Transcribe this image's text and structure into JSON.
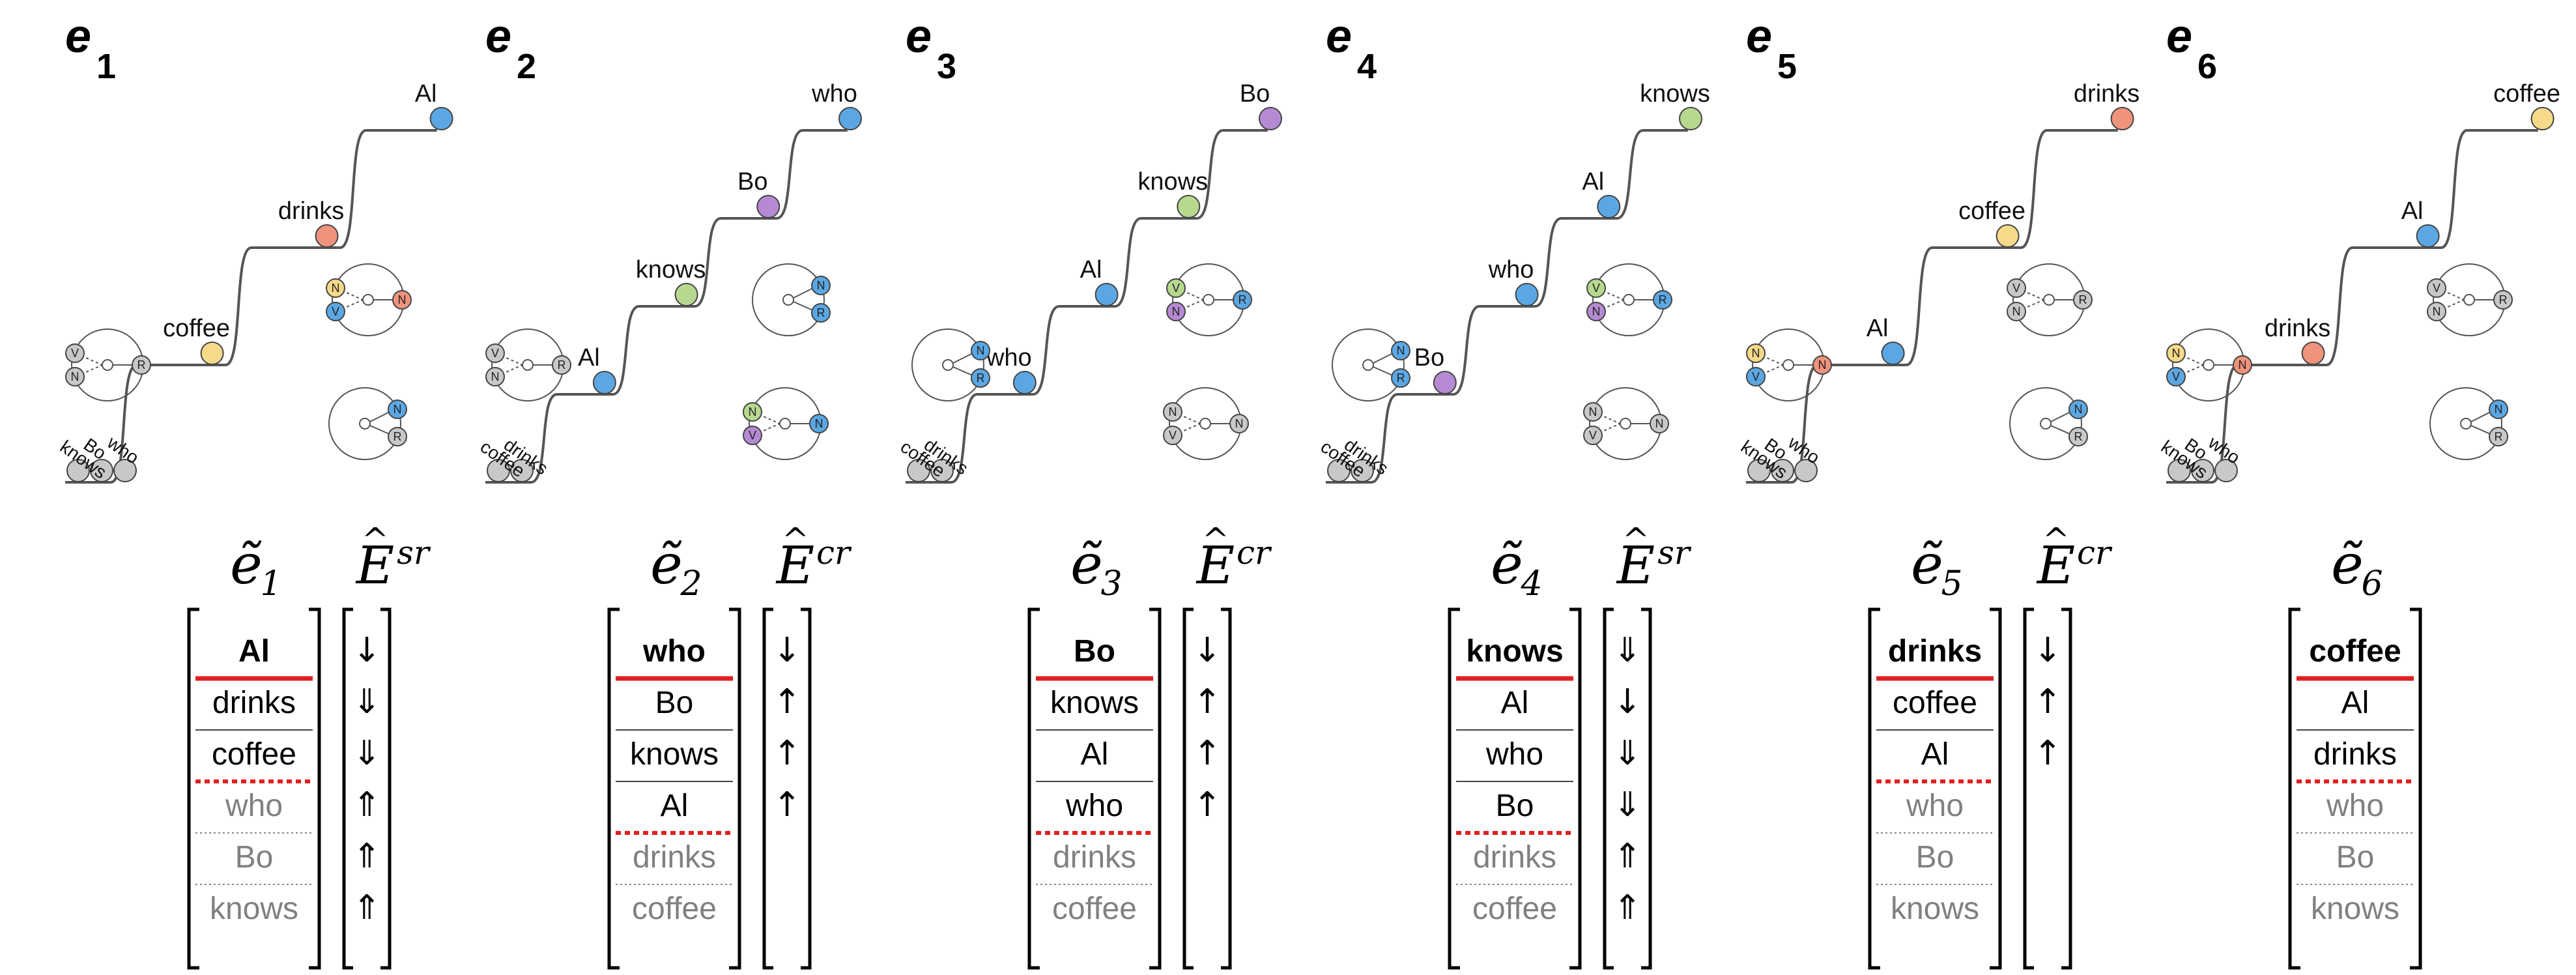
{
  "colors": {
    "Al": "#5ba7e3",
    "drinks": "#f0937c",
    "coffee": "#f7d98a",
    "who": "#5ba7e3",
    "Bo": "#b58ad3",
    "knows": "#b7d98f",
    "gray_ball": "#c8c8c8",
    "role_V": "#b7d98f",
    "role_N": "#5ba7e3",
    "role_R": "#5ba7e3",
    "role_V_alt": "#f0937c",
    "role_N_alt": "#f7d98a",
    "role_N_purple": "#b58ad3",
    "role_gray": "#c8c8c8",
    "red": "#e02020",
    "stack_gray": "#808080"
  },
  "panels": [
    {
      "title": "e",
      "subscript": "1",
      "stair_words": [
        "coffee",
        "drinks",
        "Al"
      ],
      "pile_words": [
        "knows",
        "Bo",
        "who"
      ],
      "stack_header": "ẽ₁",
      "op_header": "Ê^sr",
      "op_base": "E",
      "op_sup": "sr",
      "stack_sub": "1",
      "stack": [
        {
          "word": "Al",
          "style": "bold"
        },
        {
          "word": "drinks",
          "style": "normal"
        },
        {
          "word": "coffee",
          "style": "normal"
        },
        {
          "word": "who",
          "style": "gray"
        },
        {
          "word": "Bo",
          "style": "gray"
        },
        {
          "word": "knows",
          "style": "gray"
        }
      ],
      "red_dotted_after": 3,
      "arrows": [
        "↓",
        "⇓",
        "⇓",
        "⇑",
        "⇑",
        "⇑"
      ]
    },
    {
      "title": "e",
      "subscript": "2",
      "stair_words": [
        "Al",
        "knows",
        "Bo",
        "who"
      ],
      "pile_words": [
        "coffee",
        "drinks"
      ],
      "stack_header": "ẽ₂",
      "op_header": "Ê^cr",
      "op_base": "E",
      "op_sup": "cr",
      "stack_sub": "2",
      "stack": [
        {
          "word": "who",
          "style": "bold"
        },
        {
          "word": "Bo",
          "style": "normal"
        },
        {
          "word": "knows",
          "style": "normal"
        },
        {
          "word": "Al",
          "style": "normal"
        },
        {
          "word": "drinks",
          "style": "gray"
        },
        {
          "word": "coffee",
          "style": "gray"
        }
      ],
      "red_dotted_after": 4,
      "arrows": [
        "↓",
        "↑",
        "↑",
        "↑"
      ]
    },
    {
      "title": "e",
      "subscript": "3",
      "stair_words": [
        "who",
        "Al",
        "knows",
        "Bo"
      ],
      "pile_words": [
        "coffee",
        "drinks"
      ],
      "stack_header": "ẽ₃",
      "op_header": "Ê^cr",
      "op_base": "E",
      "op_sup": "cr",
      "stack_sub": "3",
      "stack": [
        {
          "word": "Bo",
          "style": "bold"
        },
        {
          "word": "knows",
          "style": "normal"
        },
        {
          "word": "Al",
          "style": "normal"
        },
        {
          "word": "who",
          "style": "normal"
        },
        {
          "word": "drinks",
          "style": "gray"
        },
        {
          "word": "coffee",
          "style": "gray"
        }
      ],
      "red_dotted_after": 4,
      "arrows": [
        "↓",
        "↑",
        "↑",
        "↑"
      ]
    },
    {
      "title": "e",
      "subscript": "4",
      "stair_words": [
        "Bo",
        "who",
        "Al",
        "knows"
      ],
      "pile_words": [
        "coffee",
        "drinks"
      ],
      "stack_header": "ẽ₄",
      "op_header": "Ê^sr",
      "op_base": "E",
      "op_sup": "sr",
      "stack_sub": "4",
      "stack": [
        {
          "word": "knows",
          "style": "bold"
        },
        {
          "word": "Al",
          "style": "normal"
        },
        {
          "word": "who",
          "style": "normal"
        },
        {
          "word": "Bo",
          "style": "normal"
        },
        {
          "word": "drinks",
          "style": "gray"
        },
        {
          "word": "coffee",
          "style": "gray"
        }
      ],
      "red_dotted_after": 4,
      "arrows": [
        "⇓",
        "↓",
        "⇓",
        "⇓",
        "⇑",
        "⇑"
      ]
    },
    {
      "title": "e",
      "subscript": "5",
      "stair_words": [
        "Al",
        "coffee",
        "drinks"
      ],
      "pile_words": [
        "knows",
        "Bo",
        "who"
      ],
      "stack_header": "ẽ₅",
      "op_header": "Ê^cr",
      "op_base": "E",
      "op_sup": "cr",
      "stack_sub": "5",
      "stack": [
        {
          "word": "drinks",
          "style": "bold"
        },
        {
          "word": "coffee",
          "style": "normal"
        },
        {
          "word": "Al",
          "style": "normal"
        },
        {
          "word": "who",
          "style": "gray"
        },
        {
          "word": "Bo",
          "style": "gray"
        },
        {
          "word": "knows",
          "style": "gray"
        }
      ],
      "red_dotted_after": 3,
      "arrows": [
        "↓",
        "↑",
        "↑"
      ]
    },
    {
      "title": "e",
      "subscript": "6",
      "stair_words": [
        "drinks",
        "Al",
        "coffee"
      ],
      "pile_words": [
        "knows",
        "Bo",
        "who"
      ],
      "stack_header": "ẽ₆",
      "op_header": "",
      "op_base": "",
      "op_sup": "",
      "stack_sub": "6",
      "stack": [
        {
          "word": "coffee",
          "style": "bold"
        },
        {
          "word": "Al",
          "style": "normal"
        },
        {
          "word": "drinks",
          "style": "normal"
        },
        {
          "word": "who",
          "style": "gray"
        },
        {
          "word": "Bo",
          "style": "gray"
        },
        {
          "word": "knows",
          "style": "gray"
        }
      ],
      "red_dotted_after": 3,
      "arrows": []
    }
  ],
  "role_circles": [
    [
      {
        "roles": [
          "V",
          "N"
        ],
        "chain": "R",
        "ring": "gray"
      },
      {
        "roles": [
          "N",
          "V"
        ],
        "chain": "N",
        "ring": "color1"
      },
      {
        "roles": [
          "N",
          "R"
        ],
        "chain": "",
        "ring": "color2"
      }
    ],
    [
      {
        "roles": [
          "V",
          "N"
        ],
        "chain": "R",
        "ring": "color3"
      },
      {
        "roles": [
          "N",
          "R"
        ],
        "chain": "",
        "ring": "color4"
      },
      {
        "roles": [
          "N",
          "V"
        ],
        "chain": "N",
        "ring": "color5"
      }
    ],
    [
      {
        "roles": [
          "N",
          "R"
        ],
        "chain": "",
        "ring": "color6"
      },
      {
        "roles": [
          "V",
          "N"
        ],
        "chain": "R",
        "ring": "color7"
      },
      {
        "roles": [
          "N",
          "V"
        ],
        "chain": "N",
        "ring": "color8"
      }
    ],
    [
      {
        "roles": [
          "N",
          "R"
        ],
        "chain": "",
        "ring": "color9"
      },
      {
        "roles": [
          "V",
          "N"
        ],
        "chain": "R",
        "ring": "color10"
      },
      {
        "roles": [
          "N",
          "V"
        ],
        "chain": "N",
        "ring": "color11"
      }
    ],
    [
      {
        "roles": [
          "N",
          "V"
        ],
        "chain": "N",
        "ring": "color12"
      },
      {
        "roles": [
          "V",
          "N"
        ],
        "chain": "R",
        "ring": "color13"
      },
      {
        "roles": [
          "N",
          "R"
        ],
        "chain": "",
        "ring": "color14"
      }
    ],
    [
      {
        "roles": [
          "N",
          "V"
        ],
        "chain": "N",
        "ring": "color15"
      },
      {
        "roles": [
          "V",
          "N"
        ],
        "chain": "R",
        "ring": "color16"
      },
      {
        "roles": [
          "N",
          "R"
        ],
        "chain": "",
        "ring": "color17"
      }
    ]
  ]
}
